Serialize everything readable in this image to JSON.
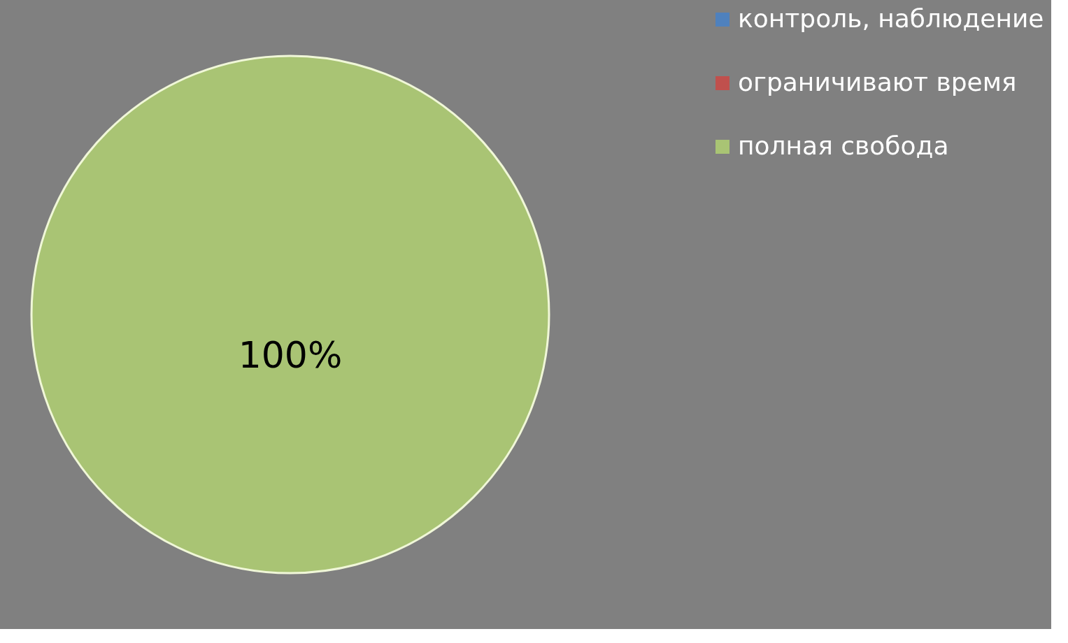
{
  "chart_data": {
    "type": "pie",
    "categories": [
      "контроль, наблюдение",
      "ограничивают время",
      "полная свобода"
    ],
    "values": [
      0,
      0,
      100
    ],
    "colors": [
      "#4f81bd",
      "#c0504d",
      "#a9c474"
    ],
    "value_labels": [
      null,
      null,
      "100%"
    ],
    "legend": "right"
  }
}
